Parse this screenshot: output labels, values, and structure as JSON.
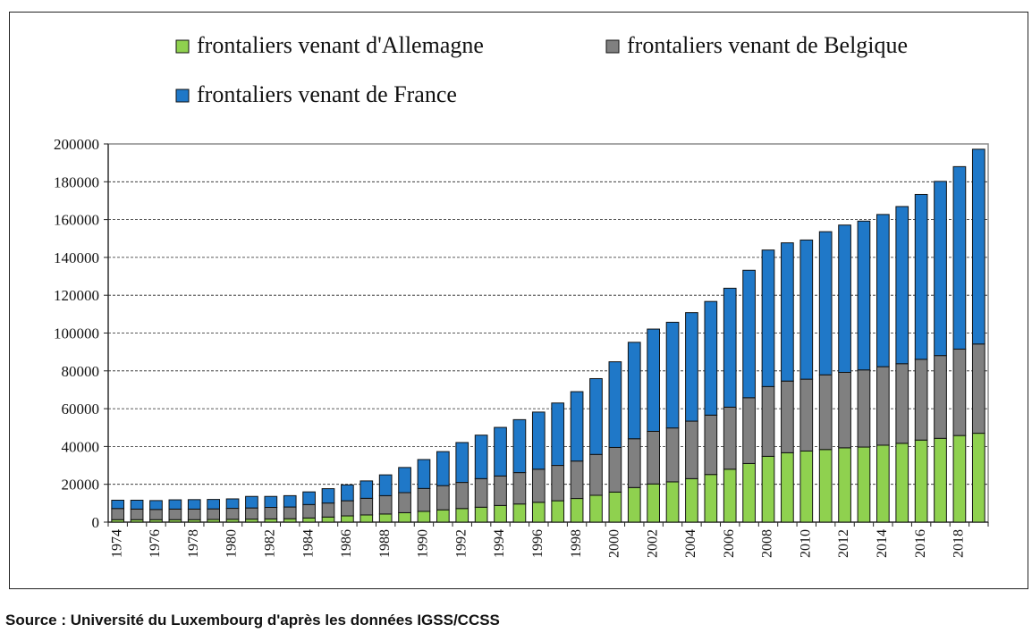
{
  "source": "Source : Université du Luxembourg d'après les données IGSS/CCSS",
  "chart_data": {
    "type": "bar",
    "stacked": true,
    "title": "",
    "xlabel": "",
    "ylabel": "",
    "ylim": [
      0,
      200000
    ],
    "y_ticks": [
      0,
      20000,
      40000,
      60000,
      80000,
      100000,
      120000,
      140000,
      160000,
      180000,
      200000
    ],
    "y_tick_labels": [
      "0",
      "20000",
      "40000",
      "60000",
      "80000",
      "100000",
      "120000",
      "140000",
      "160000",
      "180000",
      "200000"
    ],
    "grid": "horizontal-dashed",
    "legend": "top",
    "categories": [
      "1974",
      "1975",
      "1976",
      "1977",
      "1978",
      "1979",
      "1980",
      "1981",
      "1982",
      "1983",
      "1984",
      "1985",
      "1986",
      "1987",
      "1988",
      "1989",
      "1990",
      "1991",
      "1992",
      "1993",
      "1994",
      "1995",
      "1996",
      "1997",
      "1998",
      "1999",
      "2000",
      "2001",
      "2002",
      "2003",
      "2004",
      "2005",
      "2006",
      "2007",
      "2008",
      "2009",
      "2010",
      "2011",
      "2012",
      "2013",
      "2014",
      "2015",
      "2016",
      "2017",
      "2018",
      "2019"
    ],
    "x_tick_labels": [
      "1974",
      "1976",
      "1978",
      "1980",
      "1982",
      "1984",
      "1986",
      "1988",
      "1990",
      "1992",
      "1994",
      "1996",
      "1998",
      "2000",
      "2002",
      "2004",
      "2006",
      "2008",
      "2010",
      "2012",
      "2014",
      "2016",
      "2018"
    ],
    "series": [
      {
        "name": "frontaliers venant d'Allemagne",
        "color": "#8fd14f",
        "values": [
          1300,
          1300,
          1300,
          1300,
          1300,
          1400,
          1500,
          1600,
          1700,
          1800,
          2200,
          2700,
          3300,
          3800,
          4300,
          5000,
          5700,
          6500,
          7200,
          7900,
          8800,
          9600,
          10500,
          11300,
          12500,
          14200,
          15900,
          18300,
          20200,
          21300,
          23000,
          25200,
          28000,
          31000,
          34800,
          36700,
          37600,
          38400,
          39300,
          39700,
          40700,
          41700,
          43400,
          44300,
          45800,
          47000
        ]
      },
      {
        "name": "frontaliers venant de Belgique",
        "color": "#808080",
        "values": [
          5900,
          5600,
          5400,
          5600,
          5600,
          5600,
          5800,
          5900,
          6100,
          6200,
          7100,
          7400,
          8000,
          8800,
          9700,
          10600,
          12100,
          12800,
          13800,
          15100,
          15600,
          16600,
          17500,
          18700,
          19800,
          21600,
          23600,
          25800,
          27800,
          28500,
          30400,
          31400,
          32800,
          34800,
          36900,
          37900,
          38000,
          39500,
          39900,
          40800,
          41500,
          42100,
          42700,
          43800,
          45700,
          47200
        ]
      },
      {
        "name": "frontaliers venant de France",
        "color": "#1f78c8",
        "values": [
          4400,
          4700,
          4700,
          4900,
          5000,
          5000,
          5000,
          6100,
          5800,
          6000,
          6700,
          7600,
          8400,
          9200,
          11000,
          13300,
          15300,
          18000,
          21100,
          23000,
          25700,
          28000,
          30200,
          33000,
          36700,
          40100,
          45300,
          51000,
          54100,
          55900,
          57400,
          60100,
          62900,
          67400,
          72200,
          73100,
          73600,
          75700,
          77900,
          78700,
          80500,
          83100,
          87200,
          92100,
          96500,
          103000
        ]
      }
    ]
  }
}
